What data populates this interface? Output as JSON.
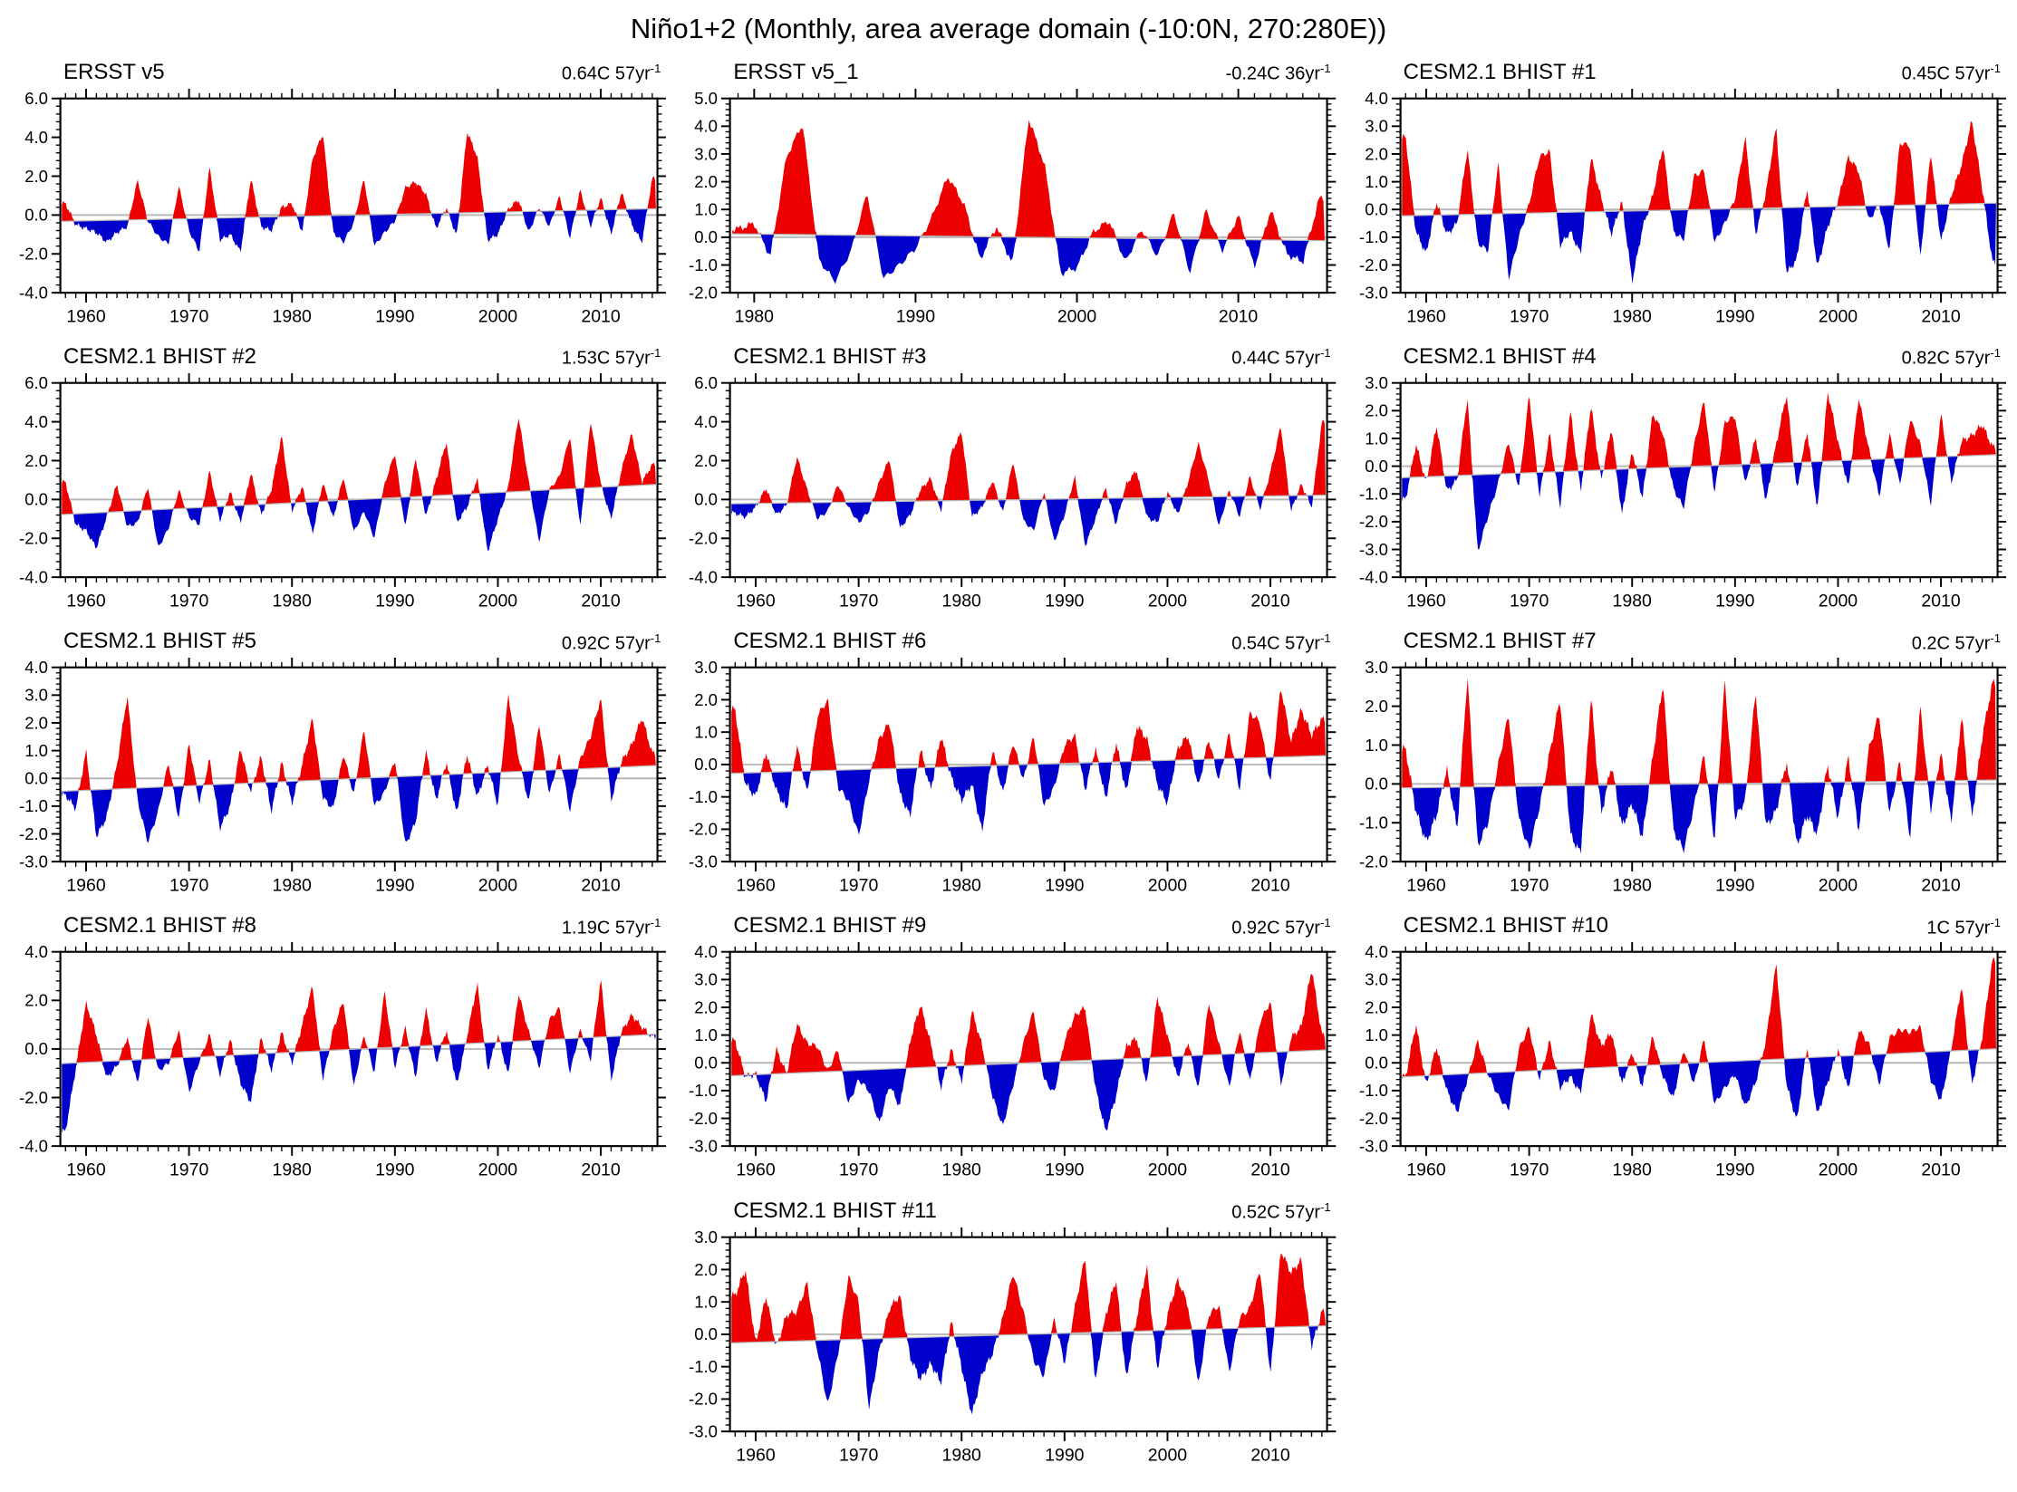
{
  "page_title": "Niño1+2 (Monthly, area average domain (-10:0N, 270:280E))",
  "colors": {
    "positive": "#ee0000",
    "negative": "#0000cc",
    "zero_line": "#b8b8b8",
    "trend_line": "#b8b8b8",
    "axis": "#000000"
  },
  "chart_data": [
    {
      "type": "area",
      "title": "ERSST v5",
      "trend_label": "0.64C 57yr",
      "trend_exp": "-1",
      "trend_total": 0.64,
      "record_years": 57,
      "x_start": 1958,
      "x_end": 2015,
      "xlim": [
        1957.5,
        2015.5
      ],
      "ylim": [
        -4,
        6
      ],
      "y_major_step": 2,
      "x_ticks": [
        1960,
        1970,
        1980,
        1990,
        2000,
        2010
      ],
      "xlabel": "",
      "ylabel": "",
      "grid": false,
      "values": [
        0.6,
        -0.5,
        -0.7,
        -0.9,
        -1.4,
        -0.9,
        -0.6,
        1.8,
        -0.3,
        -1.1,
        -1.5,
        1.5,
        -0.8,
        -1.9,
        2.5,
        -1.3,
        -1.0,
        -1.9,
        1.9,
        -0.6,
        -0.8,
        0.4,
        0.6,
        -0.9,
        2.9,
        4.2,
        -0.9,
        -1.4,
        -0.4,
        1.9,
        -1.6,
        -0.9,
        -0.3,
        1.4,
        1.7,
        1.1,
        -0.7,
        0.4,
        -1.1,
        4.3,
        3.0,
        -1.3,
        -1.0,
        0.3,
        0.8,
        -0.9,
        0.4,
        -0.6,
        1.0,
        -1.2,
        1.3,
        -0.6,
        0.9,
        -1.0,
        1.2,
        -0.5,
        -1.4,
        1.9
      ]
    },
    {
      "type": "area",
      "title": "ERSST v5_1",
      "trend_label": "-0.24C 36yr",
      "trend_exp": "-1",
      "trend_total": -0.24,
      "record_years": 36,
      "x_start": 1979,
      "x_end": 2015,
      "xlim": [
        1978.5,
        2015.5
      ],
      "ylim": [
        -2,
        5
      ],
      "y_major_step": 1,
      "x_ticks": [
        1980,
        1990,
        2000,
        2010
      ],
      "xlabel": "",
      "ylabel": "",
      "grid": false,
      "values": [
        0.3,
        0.5,
        -0.7,
        2.9,
        4.1,
        -0.8,
        -1.6,
        -0.5,
        1.6,
        -1.5,
        -1.0,
        -0.4,
        0.7,
        2.2,
        1.2,
        -0.8,
        0.4,
        -1.0,
        4.3,
        2.6,
        -1.3,
        -1.1,
        0.2,
        0.6,
        -0.9,
        0.3,
        -0.7,
        0.9,
        -1.3,
        1.0,
        -0.5,
        0.8,
        -1.1,
        1.0,
        -0.6,
        -0.9,
        1.4
      ]
    },
    {
      "type": "area",
      "title": "CESM2.1 BHIST #1",
      "trend_label": "0.45C 57yr",
      "trend_exp": "-1",
      "trend_total": 0.45,
      "record_years": 57,
      "x_start": 1958,
      "x_end": 2015,
      "xlim": [
        1957.5,
        2015.5
      ],
      "ylim": [
        -3,
        4
      ],
      "y_major_step": 1,
      "x_ticks": [
        1960,
        1970,
        1980,
        1990,
        2000,
        2010
      ],
      "xlabel": "",
      "ylabel": "",
      "grid": false,
      "values": [
        2.6,
        -0.8,
        -1.6,
        0.3,
        -0.9,
        -0.5,
        2.2,
        -1.2,
        -1.5,
        1.7,
        -2.5,
        -1.0,
        0.2,
        1.9,
        2.1,
        -1.3,
        -0.8,
        -1.6,
        1.9,
        0.4,
        -0.9,
        0.3,
        -2.6,
        -0.7,
        0.5,
        2.3,
        -0.8,
        -1.1,
        1.2,
        1.4,
        -1.2,
        -0.5,
        0.4,
        2.6,
        -0.9,
        0.6,
        3.0,
        -2.3,
        -1.8,
        0.8,
        -2.1,
        -0.6,
        0.3,
        1.9,
        1.4,
        -0.4,
        0.2,
        -1.5,
        2.4,
        2.3,
        -1.8,
        2.1,
        -1.2,
        0.5,
        1.6,
        3.2,
        0.8,
        -1.9
      ]
    },
    {
      "type": "area",
      "title": "CESM2.1 BHIST #2",
      "trend_label": "1.53C 57yr",
      "trend_exp": "-1",
      "trend_total": 1.53,
      "record_years": 57,
      "x_start": 1958,
      "x_end": 2015,
      "xlim": [
        1957.5,
        2015.5
      ],
      "ylim": [
        -4,
        6
      ],
      "y_major_step": 2,
      "x_ticks": [
        1960,
        1970,
        1980,
        1990,
        2000,
        2010
      ],
      "xlabel": "",
      "ylabel": "",
      "grid": false,
      "values": [
        0.9,
        -1.3,
        -1.6,
        -2.5,
        -0.9,
        0.8,
        -1.4,
        -1.2,
        0.7,
        -2.5,
        -1.5,
        0.5,
        -0.9,
        -1.3,
        1.5,
        -1.1,
        0.4,
        -1.2,
        1.4,
        -0.8,
        0.5,
        3.3,
        -0.6,
        0.7,
        -1.8,
        0.9,
        -1.0,
        1.2,
        -1.7,
        -0.6,
        -2.0,
        0.8,
        2.4,
        -1.5,
        2.2,
        -0.9,
        1.0,
        3.0,
        -1.2,
        -0.4,
        1.1,
        -2.7,
        -1.0,
        0.6,
        4.3,
        0.9,
        -2.2,
        0.5,
        1.2,
        3.3,
        -1.5,
        4.1,
        0.8,
        -1.0,
        1.5,
        3.4,
        0.9,
        1.8
      ]
    },
    {
      "type": "area",
      "title": "CESM2.1 BHIST #3",
      "trend_label": "0.44C 57yr",
      "trend_exp": "-1",
      "trend_total": 0.44,
      "record_years": 57,
      "x_start": 1958,
      "x_end": 2015,
      "xlim": [
        1957.5,
        2015.5
      ],
      "ylim": [
        -4,
        6
      ],
      "y_major_step": 2,
      "x_ticks": [
        1960,
        1970,
        1980,
        1990,
        2000,
        2010
      ],
      "xlabel": "",
      "ylabel": "",
      "grid": false,
      "values": [
        -0.7,
        -0.9,
        -0.4,
        0.6,
        -0.8,
        -0.3,
        2.2,
        0.5,
        -1.0,
        -0.6,
        0.8,
        -0.4,
        -1.2,
        -0.6,
        0.9,
        2.1,
        -1.5,
        -0.8,
        0.5,
        1.1,
        -0.6,
        2.4,
        3.5,
        -0.9,
        -0.4,
        1.0,
        -0.7,
        2.0,
        -1.1,
        -1.6,
        0.4,
        -2.2,
        -0.8,
        1.2,
        -2.4,
        -1.0,
        0.6,
        -1.3,
        0.8,
        1.5,
        -0.9,
        -1.2,
        0.4,
        -0.8,
        0.9,
        2.9,
        1.0,
        -1.4,
        0.5,
        -0.9,
        1.2,
        -0.5,
        1.4,
        3.8,
        -0.6,
        0.8,
        -0.4,
        4.0
      ]
    },
    {
      "type": "area",
      "title": "CESM2.1 BHIST #4",
      "trend_label": "0.82C 57yr",
      "trend_exp": "-1",
      "trend_total": 0.82,
      "record_years": 57,
      "x_start": 1958,
      "x_end": 2015,
      "xlim": [
        1957.5,
        2015.5
      ],
      "ylim": [
        -4,
        3
      ],
      "y_major_step": 1,
      "x_ticks": [
        1960,
        1970,
        1980,
        1990,
        2000,
        2010
      ],
      "xlabel": "",
      "ylabel": "",
      "grid": false,
      "values": [
        -1.2,
        0.8,
        -0.6,
        1.5,
        -0.9,
        -0.5,
        2.5,
        -3.1,
        -1.8,
        -0.6,
        0.9,
        -0.8,
        2.6,
        -1.1,
        1.2,
        -1.5,
        2.0,
        -0.9,
        2.2,
        -0.5,
        1.4,
        -1.8,
        0.6,
        -1.2,
        1.9,
        1.2,
        -0.8,
        -1.5,
        0.7,
        2.4,
        -1.0,
        1.6,
        1.8,
        -0.7,
        1.1,
        -1.3,
        0.8,
        2.6,
        -0.9,
        1.3,
        -1.6,
        2.7,
        0.9,
        -0.8,
        2.5,
        0.6,
        -1.1,
        1.2,
        -0.7,
        1.7,
        0.8,
        -1.4,
        1.9,
        -0.6,
        0.9,
        1.1,
        1.5,
        0.7
      ]
    },
    {
      "type": "area",
      "title": "CESM2.1 BHIST #5",
      "trend_label": "0.92C 57yr",
      "trend_exp": "-1",
      "trend_total": 0.92,
      "record_years": 57,
      "x_start": 1958,
      "x_end": 2015,
      "xlim": [
        1957.5,
        2015.5
      ],
      "ylim": [
        -3,
        4
      ],
      "y_major_step": 1,
      "x_ticks": [
        1960,
        1970,
        1980,
        1990,
        2000,
        2010
      ],
      "xlabel": "",
      "ylabel": "",
      "grid": false,
      "values": [
        -0.6,
        -1.1,
        1.0,
        -2.1,
        -1.4,
        0.5,
        3.0,
        -0.8,
        -2.3,
        -1.2,
        0.6,
        -1.5,
        1.3,
        -0.9,
        0.7,
        -1.8,
        -1.0,
        1.1,
        -0.5,
        0.8,
        -1.2,
        0.6,
        -0.9,
        0.5,
        2.2,
        -0.7,
        -1.1,
        0.9,
        -0.6,
        1.8,
        -1.0,
        -0.5,
        0.7,
        -2.4,
        -1.6,
        1.0,
        -0.8,
        0.6,
        -1.3,
        0.9,
        -0.7,
        0.5,
        -1.0,
        3.0,
        0.8,
        -0.9,
        2.0,
        -0.6,
        0.9,
        -1.2,
        0.7,
        1.5,
        2.9,
        -0.8,
        0.6,
        1.2,
        2.2,
        0.9
      ]
    },
    {
      "type": "area",
      "title": "CESM2.1 BHIST #6",
      "trend_label": "0.54C 57yr",
      "trend_exp": "-1",
      "trend_total": 0.54,
      "record_years": 57,
      "x_start": 1958,
      "x_end": 2015,
      "xlim": [
        1957.5,
        2015.5
      ],
      "ylim": [
        -3,
        3
      ],
      "y_major_step": 1,
      "x_ticks": [
        1960,
        1970,
        1980,
        1990,
        2000,
        2010
      ],
      "xlabel": "",
      "ylabel": "",
      "grid": false,
      "values": [
        1.7,
        -0.6,
        -1.0,
        0.4,
        -0.8,
        -1.4,
        0.6,
        -0.9,
        1.5,
        2.0,
        -0.7,
        -1.1,
        -2.2,
        -0.5,
        0.8,
        1.3,
        -0.9,
        -1.6,
        0.5,
        -0.8,
        0.9,
        -0.4,
        -1.1,
        -0.6,
        -2.1,
        0.5,
        -0.9,
        0.7,
        -0.5,
        0.9,
        -1.3,
        -0.7,
        0.6,
        0.9,
        -0.8,
        0.5,
        -1.1,
        0.7,
        -0.9,
        1.2,
        0.8,
        -0.6,
        -1.2,
        0.5,
        0.9,
        -0.7,
        0.8,
        -0.5,
        1.0,
        -0.8,
        1.6,
        1.3,
        -0.6,
        2.4,
        0.7,
        1.7,
        0.9,
        1.4
      ]
    },
    {
      "type": "area",
      "title": "CESM2.1 BHIST #7",
      "trend_label": "0.2C 57yr",
      "trend_exp": "-1",
      "trend_total": 0.2,
      "record_years": 57,
      "x_start": 1958,
      "x_end": 2015,
      "xlim": [
        1957.5,
        2015.5
      ],
      "ylim": [
        -2,
        3
      ],
      "y_major_step": 1,
      "x_ticks": [
        1960,
        1970,
        1980,
        1990,
        2000,
        2010
      ],
      "xlabel": "",
      "ylabel": "",
      "grid": false,
      "values": [
        0.9,
        -0.7,
        -1.5,
        -0.8,
        0.4,
        -1.2,
        2.8,
        -1.6,
        -1.0,
        0.5,
        1.8,
        -0.9,
        -1.7,
        -0.6,
        0.8,
        2.2,
        -1.3,
        -1.8,
        2.3,
        -0.8,
        0.5,
        -1.1,
        -0.5,
        -1.4,
        0.7,
        2.6,
        -1.2,
        -1.7,
        -0.6,
        0.8,
        -1.5,
        2.7,
        -0.9,
        -0.4,
        2.4,
        -1.1,
        -0.7,
        0.6,
        -1.6,
        -0.8,
        -1.3,
        0.5,
        -0.9,
        0.7,
        -1.2,
        0.9,
        1.8,
        -0.8,
        0.6,
        -1.4,
        2.0,
        -0.7,
        0.8,
        -1.0,
        1.8,
        -0.9,
        1.2,
        2.6
      ]
    },
    {
      "type": "area",
      "title": "CESM2.1 BHIST #8",
      "trend_label": "1.19C 57yr",
      "trend_exp": "-1",
      "trend_total": 1.19,
      "record_years": 57,
      "x_start": 1958,
      "x_end": 2015,
      "xlim": [
        1957.5,
        2015.5
      ],
      "ylim": [
        -4,
        4
      ],
      "y_major_step": 2,
      "x_ticks": [
        1960,
        1970,
        1980,
        1990,
        2000,
        2010
      ],
      "xlabel": "",
      "ylabel": "",
      "grid": false,
      "values": [
        -3.4,
        -0.8,
        1.9,
        0.6,
        -1.2,
        -0.7,
        0.5,
        -1.5,
        1.4,
        -0.9,
        -0.6,
        0.8,
        -1.8,
        -0.5,
        0.6,
        -1.1,
        0.4,
        -1.4,
        -2.2,
        0.5,
        -0.9,
        0.7,
        -0.6,
        1.0,
        2.6,
        -1.3,
        0.8,
        2.0,
        -1.6,
        0.6,
        -1.0,
        2.4,
        -0.8,
        0.9,
        -1.2,
        1.7,
        -0.6,
        0.8,
        -1.5,
        0.5,
        2.7,
        -0.9,
        0.6,
        -1.1,
        2.3,
        0.7,
        -0.8,
        1.2,
        1.7,
        -1.0,
        0.8,
        -0.5,
        2.9,
        -1.3,
        0.7,
        1.4,
        0.9,
        0.5
      ]
    },
    {
      "type": "area",
      "title": "CESM2.1 BHIST #9",
      "trend_label": "0.92C 57yr",
      "trend_exp": "-1",
      "trend_total": 0.92,
      "record_years": 57,
      "x_start": 1958,
      "x_end": 2015,
      "xlim": [
        1957.5,
        2015.5
      ],
      "ylim": [
        -3,
        4
      ],
      "y_major_step": 1,
      "x_ticks": [
        1960,
        1970,
        1980,
        1990,
        2000,
        2010
      ],
      "xlabel": "",
      "ylabel": "",
      "grid": false,
      "values": [
        0.8,
        -0.5,
        -0.4,
        -1.4,
        0.5,
        -0.4,
        1.4,
        0.7,
        0.6,
        -0.3,
        0.5,
        -1.5,
        -0.6,
        -1.0,
        -2.2,
        -0.8,
        -1.6,
        0.8,
        2.1,
        0.7,
        -0.9,
        0.5,
        -0.7,
        1.9,
        0.6,
        -1.2,
        -2.3,
        -0.8,
        0.7,
        1.9,
        -0.6,
        -1.1,
        0.8,
        1.7,
        2.0,
        -0.9,
        -2.5,
        -1.2,
        0.6,
        0.9,
        -0.8,
        2.4,
        1.0,
        -0.6,
        0.8,
        -1.0,
        2.2,
        0.7,
        -0.9,
        1.2,
        -0.7,
        1.5,
        2.2,
        -0.8,
        0.9,
        1.3,
        3.4,
        1.0
      ]
    },
    {
      "type": "area",
      "title": "CESM2.1 BHIST #10",
      "trend_label": "1C 57yr",
      "trend_exp": "-1",
      "trend_total": 1.0,
      "record_years": 57,
      "x_start": 1958,
      "x_end": 2015,
      "xlim": [
        1957.5,
        2015.5
      ],
      "ylim": [
        -3,
        4
      ],
      "y_major_step": 1,
      "x_ticks": [
        1960,
        1970,
        1980,
        1990,
        2000,
        2010
      ],
      "xlabel": "",
      "ylabel": "",
      "grid": false,
      "values": [
        -0.5,
        1.4,
        -0.8,
        0.6,
        -1.0,
        -1.8,
        -0.6,
        0.8,
        -0.4,
        -1.2,
        -1.7,
        0.5,
        1.3,
        -0.6,
        0.8,
        -0.9,
        -0.5,
        -1.1,
        1.8,
        0.6,
        1.1,
        -0.8,
        0.4,
        -0.9,
        1.0,
        -0.5,
        -1.3,
        0.5,
        -0.8,
        0.9,
        -1.5,
        -0.9,
        -0.4,
        -1.6,
        -0.7,
        0.8,
        3.6,
        -0.8,
        -2.1,
        0.6,
        -1.9,
        -0.7,
        0.5,
        -1.0,
        1.2,
        0.7,
        -0.8,
        0.9,
        1.2,
        1.1,
        1.3,
        -0.6,
        -1.4,
        0.5,
        2.8,
        -0.8,
        0.9,
        3.7
      ]
    },
    {
      "type": "area",
      "title": "CESM2.1 BHIST #11",
      "trend_label": "0.52C 57yr",
      "trend_exp": "-1",
      "trend_total": 0.52,
      "record_years": 57,
      "x_start": 1958,
      "x_end": 2015,
      "xlim": [
        1957.5,
        2015.5
      ],
      "ylim": [
        -3,
        3
      ],
      "y_major_step": 1,
      "x_ticks": [
        1960,
        1970,
        1980,
        1990,
        2000,
        2010
      ],
      "xlabel": "",
      "ylabel": "",
      "grid": false,
      "values": [
        1.2,
        2.0,
        -0.3,
        1.2,
        -0.4,
        0.6,
        0.7,
        1.6,
        -0.5,
        -2.2,
        -0.6,
        1.8,
        1.0,
        -2.3,
        -0.5,
        0.8,
        1.2,
        -0.7,
        -1.4,
        -0.9,
        -1.5,
        0.4,
        -1.0,
        -2.5,
        -1.2,
        -0.6,
        0.5,
        1.9,
        0.7,
        -0.8,
        -1.3,
        0.5,
        -0.9,
        0.8,
        2.4,
        -1.5,
        0.6,
        1.7,
        -1.4,
        0.5,
        2.1,
        -1.1,
        0.6,
        1.7,
        0.9,
        -1.6,
        0.6,
        0.9,
        -1.2,
        0.5,
        0.8,
        2.0,
        -1.3,
        2.6,
        1.9,
        2.3,
        -0.4,
        0.7
      ]
    }
  ]
}
